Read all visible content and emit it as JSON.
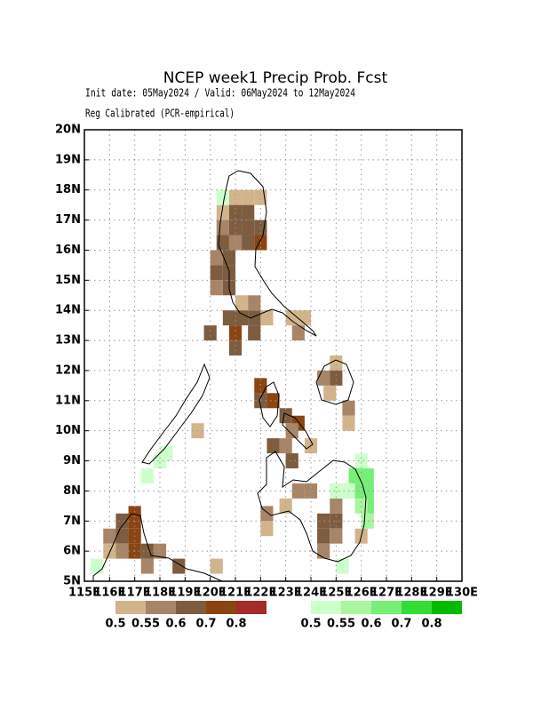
{
  "title": "NCEP week1 Precip Prob. Fcst",
  "subtitle": [
    "Init date: 05May2024 / Valid: 06May2024 to 12May2024",
    "Reg Calibrated (PCR-empirical)"
  ],
  "map": {
    "type": "grid",
    "xlim": [
      115,
      130
    ],
    "ylim": [
      5,
      20
    ],
    "xticks": [
      {
        "value": 115,
        "label": "115E"
      },
      {
        "value": 116,
        "label": "116E"
      },
      {
        "value": 117,
        "label": "117E"
      },
      {
        "value": 118,
        "label": "118E"
      },
      {
        "value": 119,
        "label": "119E"
      },
      {
        "value": 120,
        "label": "120E"
      },
      {
        "value": 121,
        "label": "121E"
      },
      {
        "value": 122,
        "label": "122E"
      },
      {
        "value": 123,
        "label": "123E"
      },
      {
        "value": 124,
        "label": "124E"
      },
      {
        "value": 125,
        "label": "125E"
      },
      {
        "value": 126,
        "label": "126E"
      },
      {
        "value": 127,
        "label": "127E"
      },
      {
        "value": 128,
        "label": "128E"
      },
      {
        "value": 129,
        "label": "129E"
      },
      {
        "value": 130,
        "label": "130E"
      }
    ],
    "yticks": [
      {
        "value": 5,
        "label": "5N"
      },
      {
        "value": 6,
        "label": "6N"
      },
      {
        "value": 7,
        "label": "7N"
      },
      {
        "value": 8,
        "label": "8N"
      },
      {
        "value": 9,
        "label": "9N"
      },
      {
        "value": 10,
        "label": "10N"
      },
      {
        "value": 11,
        "label": "11N"
      },
      {
        "value": 12,
        "label": "12N"
      },
      {
        "value": 13,
        "label": "13N"
      },
      {
        "value": 14,
        "label": "14N"
      },
      {
        "value": 15,
        "label": "15N"
      },
      {
        "value": 16,
        "label": "16N"
      },
      {
        "value": 17,
        "label": "17N"
      },
      {
        "value": 18,
        "label": "18N"
      },
      {
        "value": 19,
        "label": "19N"
      },
      {
        "value": 20,
        "label": "20N"
      }
    ],
    "grid": true,
    "cell_size": 0.5,
    "legends": [
      {
        "colors": [
          "#d2b48c",
          "#a88568",
          "#7d5c40",
          "#8b4513",
          "#a52a2a"
        ],
        "ticks": [
          0.5,
          0.55,
          0.6,
          0.7,
          0.8
        ]
      },
      {
        "colors": [
          "#ccffcc",
          "#aaf5a0",
          "#77ee77",
          "#33dd33",
          "#00bb00"
        ],
        "ticks": [
          0.5,
          0.55,
          0.6,
          0.7,
          0.8
        ]
      }
    ],
    "below": [
      [
        120.75,
        17.5,
        0.5
      ],
      [
        121.25,
        17.5,
        0.5
      ],
      [
        121.75,
        17.5,
        0.5
      ],
      [
        120.25,
        17.0,
        0.5
      ],
      [
        120.75,
        17.0,
        0.6
      ],
      [
        121.25,
        17.0,
        0.6
      ],
      [
        120.25,
        16.5,
        0.55
      ],
      [
        120.75,
        16.5,
        0.6
      ],
      [
        121.25,
        16.5,
        0.6
      ],
      [
        121.75,
        16.5,
        0.6
      ],
      [
        120.25,
        16.0,
        0.6
      ],
      [
        120.75,
        16.0,
        0.55
      ],
      [
        121.25,
        16.0,
        0.6
      ],
      [
        121.75,
        16.0,
        0.7
      ],
      [
        120.0,
        15.5,
        0.55
      ],
      [
        120.5,
        15.5,
        0.6
      ],
      [
        120.0,
        15.0,
        0.6
      ],
      [
        120.5,
        15.0,
        0.6
      ],
      [
        120.0,
        14.5,
        0.55
      ],
      [
        120.5,
        14.5,
        0.6
      ],
      [
        121.0,
        14.0,
        0.5
      ],
      [
        121.5,
        14.0,
        0.55
      ],
      [
        120.5,
        13.5,
        0.6
      ],
      [
        121.0,
        13.5,
        0.6
      ],
      [
        121.5,
        13.5,
        0.6
      ],
      [
        122.0,
        13.5,
        0.5
      ],
      [
        119.75,
        13.0,
        0.6
      ],
      [
        120.75,
        13.0,
        0.7
      ],
      [
        121.5,
        13.0,
        0.6
      ],
      [
        120.75,
        12.5,
        0.6
      ],
      [
        123.0,
        13.5,
        0.5
      ],
      [
        123.25,
        13.0,
        0.55
      ],
      [
        123.5,
        13.5,
        0.5
      ],
      [
        121.75,
        11.25,
        0.7
      ],
      [
        121.75,
        10.75,
        0.6
      ],
      [
        122.25,
        10.75,
        0.7
      ],
      [
        122.75,
        10.25,
        0.6
      ],
      [
        123.25,
        10.0,
        0.7
      ],
      [
        123.0,
        9.75,
        0.55
      ],
      [
        122.25,
        9.25,
        0.6
      ],
      [
        122.75,
        9.25,
        0.55
      ],
      [
        123.0,
        8.75,
        0.6
      ],
      [
        123.75,
        9.25,
        0.5
      ],
      [
        124.75,
        12.0,
        0.5
      ],
      [
        124.25,
        11.5,
        0.55
      ],
      [
        124.75,
        11.5,
        0.6
      ],
      [
        124.5,
        11.0,
        0.5
      ],
      [
        125.25,
        10.5,
        0.55
      ],
      [
        125.25,
        10.0,
        0.5
      ],
      [
        123.25,
        7.75,
        0.55
      ],
      [
        123.75,
        7.75,
        0.55
      ],
      [
        122.75,
        7.25,
        0.5
      ],
      [
        124.75,
        7.25,
        0.55
      ],
      [
        124.25,
        6.75,
        0.6
      ],
      [
        124.75,
        6.75,
        0.6
      ],
      [
        124.25,
        6.25,
        0.6
      ],
      [
        124.75,
        6.25,
        0.55
      ],
      [
        124.25,
        5.75,
        0.55
      ],
      [
        125.75,
        6.25,
        0.5
      ],
      [
        122.0,
        7.0,
        0.55
      ],
      [
        122.0,
        6.5,
        0.5
      ],
      [
        115.75,
        6.25,
        0.55
      ],
      [
        116.25,
        6.75,
        0.6
      ],
      [
        116.25,
        6.25,
        0.6
      ],
      [
        116.75,
        6.75,
        0.7
      ],
      [
        116.75,
        6.25,
        0.7
      ],
      [
        116.75,
        5.75,
        0.7
      ],
      [
        117.25,
        5.75,
        0.6
      ],
      [
        117.75,
        5.75,
        0.55
      ],
      [
        116.75,
        7.0,
        0.7
      ],
      [
        115.75,
        5.75,
        0.5
      ],
      [
        116.25,
        5.75,
        0.55
      ],
      [
        117.25,
        5.25,
        0.55
      ],
      [
        118.5,
        5.25,
        0.6
      ],
      [
        119.25,
        9.75,
        0.5
      ],
      [
        120.0,
        5.25,
        0.5
      ]
    ],
    "above": [
      [
        120.25,
        17.5,
        0.5
      ],
      [
        117.75,
        8.75,
        0.5
      ],
      [
        118.0,
        9.0,
        0.5
      ],
      [
        117.25,
        8.25,
        0.5
      ],
      [
        115.25,
        5.25,
        0.5
      ],
      [
        125.75,
        8.75,
        0.5
      ],
      [
        125.5,
        8.25,
        0.6
      ],
      [
        126.0,
        8.25,
        0.6
      ],
      [
        125.5,
        7.75,
        0.6
      ],
      [
        126.0,
        7.75,
        0.6
      ],
      [
        124.75,
        7.75,
        0.5
      ],
      [
        125.25,
        7.75,
        0.5
      ],
      [
        126.0,
        7.25,
        0.6
      ],
      [
        125.75,
        7.25,
        0.55
      ],
      [
        126.0,
        6.75,
        0.55
      ],
      [
        125.0,
        5.25,
        0.5
      ]
    ]
  }
}
